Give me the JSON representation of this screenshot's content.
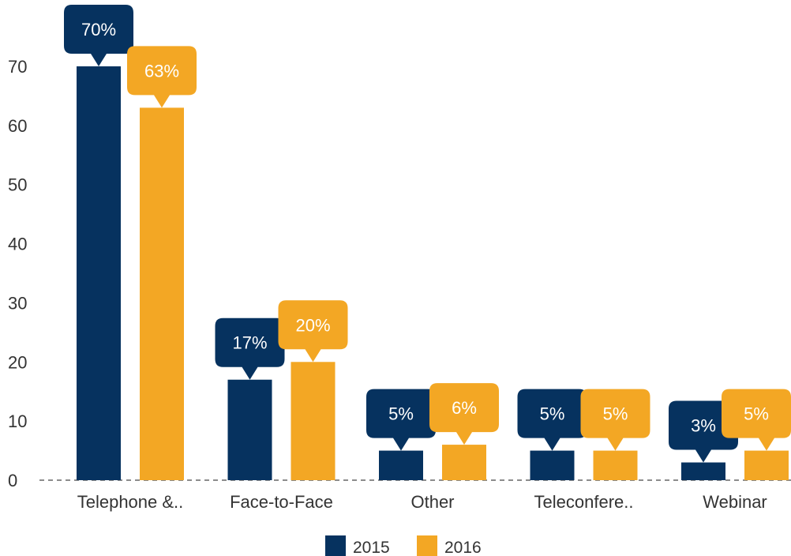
{
  "chart_data": {
    "type": "bar",
    "categories": [
      "Telephone &..",
      "Face-to-Face",
      "Other",
      "Teleconfere..",
      "Webinar"
    ],
    "series": [
      {
        "name": "2015",
        "color": "#06325f",
        "values": [
          70,
          17,
          5,
          5,
          3
        ],
        "labels": [
          "70%",
          "17%",
          "5%",
          "5%",
          "3%"
        ]
      },
      {
        "name": "2016",
        "color": "#f3a724",
        "values": [
          63,
          20,
          6,
          5,
          5
        ],
        "labels": [
          "63%",
          "20%",
          "6%",
          "5%",
          "5%"
        ]
      }
    ],
    "yticks": [
      "0",
      "10",
      "20",
      "30",
      "40",
      "50",
      "60",
      "70"
    ],
    "ylim": [
      0,
      70
    ],
    "grid": false,
    "legend_position": "bottom"
  }
}
